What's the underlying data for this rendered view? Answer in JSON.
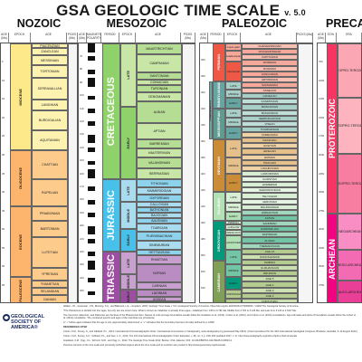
{
  "title": "GSA GEOLOGIC TIME SCALE",
  "version": "v. 5.0",
  "eras": {
    "cenozoic": "NOZOIC",
    "mesozoic": "MESOZOIC",
    "paleozoic": "PALEOZOIC",
    "precambrian": "PRECAMB"
  },
  "headers": {
    "age_ma": "AGE (Ma)",
    "epoch": "EPOCH",
    "age": "AGE",
    "picks": "PICKS (Ma)",
    "magnetic_polarity": "MAGNETIC POLARITY",
    "period": "PERIOD",
    "eon": "EON",
    "era": "ERA"
  },
  "cenozoic": {
    "epochs": [
      "MIOCENE",
      "OLIGOCENE",
      "EOCENE",
      "PALEOCENE"
    ],
    "ages": [
      "PIACENZIAN",
      "ZANCLEAN",
      "MESSINIAN",
      "TORTONIAN",
      "SERRAVALLIAN",
      "LANGHIAN",
      "BURDIGALIAN",
      "AQUITANIAN",
      "CHATTIAN",
      "RUPELIAN",
      "PRIABONIAN",
      "BARTONIAN",
      "LUTETIAN",
      "YPRESIAN",
      "THANETIAN",
      "SELANDIAN",
      "DANIAN"
    ]
  },
  "mesozoic": {
    "periods": [
      "CRETACEOUS",
      "JURASSIC",
      "TRIASSIC"
    ],
    "epochs": [
      "LATE",
      "EARLY",
      "LATE",
      "MIDDLE",
      "EARLY",
      "LATE",
      "MIDDLE",
      "EARLY"
    ],
    "ages": [
      "MAASTRICHTIAN",
      "CAMPANIAN",
      "SANTONIAN",
      "CONIACIAN",
      "TURONIAN",
      "CENOMANIAN",
      "ALBIAN",
      "APTIAN",
      "BARREMIAN",
      "HAUTERIVIAN",
      "VALANGINIAN",
      "BERRIASIAN",
      "TITHONIAN",
      "KIMMERIDGIAN",
      "OXFORDIAN",
      "CALLOVIAN",
      "BATHONIAN",
      "BAJOCIAN",
      "AALENIAN",
      "TOARCIAN",
      "PLIENSBACHIAN",
      "SINEMURIAN",
      "HETTANGIAN",
      "RHAETIAN",
      "NORIAN",
      "CARNIAN",
      "LADINIAN",
      "ANISIAN",
      "OLENEKIAN",
      "INDUAN"
    ]
  },
  "paleozoic": {
    "periods": [
      "PERMIAN",
      "PENNSYLVANIAN",
      "MISSISSIPPIAN",
      "DEVONIAN",
      "SILURIAN",
      "ORDOVICIAN",
      "CAMBRIAN"
    ],
    "carboniferous": "CARBONIFEROUS",
    "epochs": [
      "Lopin-gian",
      "Guada-lupian",
      "Cisura-lian",
      "LATE",
      "MIDDLE",
      "EARLY",
      "LATE",
      "MIDDLE",
      "EARLY",
      "LATE",
      "MIDDLE",
      "EARLY",
      "LATE",
      "MIDDLE",
      "EARLY",
      "PRIDOLI",
      "LUDLOW",
      "WENLOCK",
      "LLANDOVERY",
      "LATE",
      "MIDDLE",
      "EARLY",
      "FURONGIAN",
      "Epoch 3",
      "Epoch 2",
      "TERRE-NEUVIAN"
    ],
    "ages": [
      "CHANGHSINGIAN",
      "WUCHIAPINGIAN",
      "CAPITANIAN",
      "WORDIAN",
      "ROADIAN",
      "KUNGURIAN",
      "ARTINSKIAN",
      "SAKMARIAN",
      "ASSELIAN",
      "GZHELIAN",
      "KASIMOVIAN",
      "MOSCOVIAN",
      "BASHKIRIAN",
      "SERPUKHOVIAN",
      "VISEAN",
      "TOURNAISIAN",
      "FAMENNIAN",
      "FRASNIAN",
      "GIVETIAN",
      "EIFELIAN",
      "EMSIAN",
      "PRAGIAN",
      "LOCHKOVIAN",
      "LUDFORDIAN",
      "GORSTIAN",
      "HOMERIAN",
      "SHEINWOODIAN",
      "TELYCHIAN",
      "AERONIAN",
      "RHUDDANIAN",
      "HIRNANTIAN",
      "KATIAN",
      "SANDBIAN",
      "DARRIWILIAN",
      "DAPINGIAN",
      "FLOIAN",
      "TREMADOCIAN",
      "AGE 10",
      "JIANGSHANIAN",
      "PAIBIAN",
      "GUZHANGIAN",
      "DRUMIAN",
      "AGE 5",
      "AGE 4",
      "AGE 3",
      "AGE 2",
      "FORTUNIAN"
    ]
  },
  "precambrian": {
    "eons": [
      "PROTEROZOIC",
      "ARCHEAN"
    ],
    "eras": [
      "NEOPRO-TEROZOIC",
      "MESOPRO-TEROZOIC",
      "PALEOPRO-TEROZOIC",
      "NEOARCHEAN",
      "MESO-ARCHEAN",
      "PALEO-ARCHEAN"
    ]
  },
  "ticks": {
    "cenozoic": [
      "5",
      "10",
      "15",
      "20",
      "25",
      "30",
      "35",
      "40",
      "45",
      "50",
      "55",
      "60",
      "65"
    ],
    "mesozoic": [
      "70",
      "80",
      "90",
      "100",
      "110",
      "120",
      "130",
      "140",
      "150",
      "160",
      "170",
      "180",
      "190",
      "200",
      "210",
      "220",
      "230",
      "240",
      "250"
    ],
    "paleozoic": [
      "260",
      "280",
      "300",
      "320",
      "340",
      "360",
      "380",
      "400",
      "420",
      "440",
      "460",
      "480",
      "500",
      "520",
      "540"
    ],
    "precambrian": [
      "750",
      "1000",
      "1250",
      "1500",
      "1750",
      "2000",
      "2250",
      "2500",
      "2750",
      "3000",
      "3250",
      "3500",
      "3750"
    ]
  },
  "logo": {
    "name": "GEOLOGICAL SOCIETY OF AMERICA®"
  },
  "footer": [
    "Walker, J.D., Geissman, J.W., Bowring, S.A., and Babcock, L.E., compilers, 2018, Geologic Time Scale v. 5.0: Geological Society of America, https://doi.org/10.1130/2018.CTS005R3C. ©2018 The Geological Society of America.",
    "*The Pleistocene is divided into four ages, but only two are shown here. What is shown as Calabrian is actually three ages—Calabrian from 1.80 to 0.781 Ma, Middle from 0.781 to 0.126 Ma, and Late from 0.126 to 0.0117 Ma.",
    "The Cenozoic, Mesozoic, and Paleozoic are the Eras of the Phanerozoic Eon. Names of units and age boundaries usually follow the Gradstein et al. (2012), Cohen et al. (2012), and Cohen et al. (2013) compilations. Age estimates and picks of boundaries usually follow the Cohen et al. (2012) compilation. The numbered epochs and ages of the Cambrian are provisional.",
    "A \"~\" before ages indicates that the age is only approximately determined; a \"+\" indicates that the boundary has been formally defined by a GSSP.",
    "REFERENCES CITED",
    "Cohen, K.M., Finney, S., and Gibbard, P.L., 2013, International Chronostratigraphic Chart: International Commission on Stratigraphy, www.stratigraphy.org (accessed May 2013). (Chart reproduced for the 34th International Geological Congress, Brisbane, Australia, 5–10 August 2012.)",
    "Cohen, K.M., Finney, S.C., Gibbard, P.L., and Fan, J.-X., 2013, The ICS International Chronostratigraphic Chart: Episodes, v. 36, no. 3, p. 199–204 (updated 2017, v. 2). http://www.stratigraphy.org/index.php/ics-chart-timescale",
    "Gradstein, F.M., Ogg, J.G., Schmitz, M.D., and Ogg, G., 2012, The Geologic Time Scale 2012: Boston, USA, Elsevier, DOI: 10.1016/B978-0-444-59425-9.00004-4.",
    "Previous versions of the time scale and previously published papers about the time scale and its evolution are posted to http://www.geosociety.org/timescale"
  ],
  "colors": {
    "cenozoic_epoch": "#fde88a",
    "cenozoic_age": "#fef2b1",
    "paleogene": "#fdb46c",
    "cretaceous": "#8fd16b",
    "cretaceous_light": "#c8e6a6",
    "jurassic": "#47c1ea",
    "jurassic_light": "#a9dcee",
    "triassic": "#9d4ea2",
    "triassic_light": "#c8a0cf",
    "permian": "#ef5845",
    "permian_light": "#f6a99a",
    "carboniferous": "#67a5a3",
    "carboniferous_light": "#a7cfc8",
    "devonian": "#cb8c37",
    "devonian_light": "#e5c08a",
    "silurian": "#b3e1b6",
    "silurian_light": "#d8efd6",
    "ordovician": "#009a7a",
    "ordovician_light": "#73c6a5",
    "cambrian": "#7fa056",
    "cambrian_light": "#b4cc8f",
    "proterozoic": "#f73563",
    "proterozoic_light": "#fca8b4",
    "archean": "#f0047f",
    "archean_light": "#f88ec3"
  }
}
